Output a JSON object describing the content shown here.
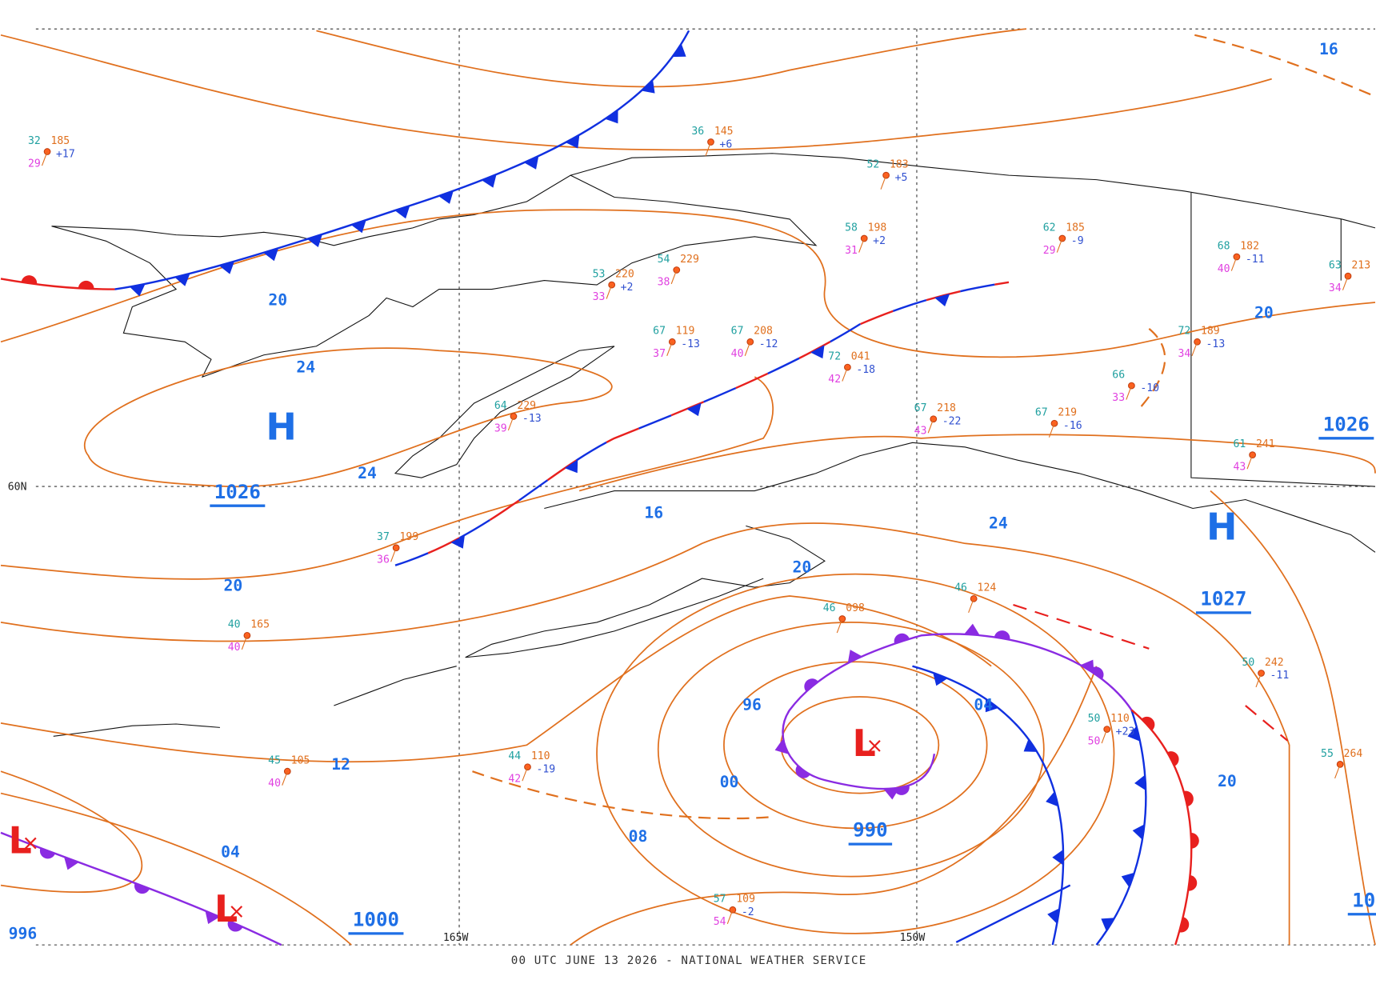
{
  "footer": "00 UTC JUNE 13 2026 - NATIONAL WEATHER SERVICE",
  "grid_labels": [
    "60N",
    "165W",
    "150W"
  ],
  "isobar_labels": [
    "20",
    "24",
    "24",
    "20",
    "20",
    "16",
    "24",
    "12",
    "04",
    "96",
    "04",
    "00",
    "08",
    "20",
    "20",
    "16",
    "996"
  ],
  "pressure_labels": [
    "1026",
    "1000",
    "990",
    "1027",
    "1026",
    "10"
  ],
  "centers": [
    "H",
    "H",
    "L",
    "L",
    "L"
  ],
  "stations": [
    {
      "temp": "32",
      "pressure": "185",
      "dewpoint": "29",
      "tendency": "+17"
    },
    {
      "temp": "36",
      "pressure": "145",
      "tendency": "+6"
    },
    {
      "temp": "52",
      "pressure": "183",
      "tendency": "+5"
    },
    {
      "temp": "58",
      "pressure": "198",
      "dewpoint": "31",
      "tendency": "+2"
    },
    {
      "temp": "62",
      "pressure": "185",
      "dewpoint": "29",
      "tendency": "-9"
    },
    {
      "temp": "68",
      "pressure": "182",
      "dewpoint": "40",
      "tendency": "-11"
    },
    {
      "temp": "53",
      "pressure": "220",
      "dewpoint": "33",
      "tendency": "+2"
    },
    {
      "temp": "54",
      "pressure": "229",
      "dewpoint": "38"
    },
    {
      "temp": "67",
      "pressure": "119",
      "dewpoint": "37",
      "tendency": "-13"
    },
    {
      "temp": "67",
      "pressure": "208",
      "dewpoint": "40",
      "tendency": "-12"
    },
    {
      "temp": "72",
      "pressure": "041",
      "dewpoint": "42",
      "tendency": "-18"
    },
    {
      "temp": "67",
      "pressure": "219",
      "tendency": "-16"
    },
    {
      "temp": "67",
      "pressure": "218",
      "dewpoint": "43",
      "tendency": "-22"
    },
    {
      "temp": "64",
      "pressure": "229",
      "dewpoint": "39",
      "tendency": "-13"
    },
    {
      "temp": "37",
      "pressure": "199",
      "dewpoint": "36"
    },
    {
      "temp": "40",
      "pressure": "165",
      "dewpoint": "40"
    },
    {
      "temp": "46",
      "pressure": "124"
    },
    {
      "temp": "46",
      "pressure": "098"
    },
    {
      "temp": "50",
      "pressure": "110",
      "dewpoint": "50",
      "tendency": "+23"
    },
    {
      "temp": "50",
      "pressure": "242",
      "tendency": "-11"
    },
    {
      "temp": "55",
      "pressure": "264"
    },
    {
      "temp": "44",
      "pressure": "110",
      "dewpoint": "42",
      "tendency": "-19"
    },
    {
      "temp": "45",
      "pressure": "105",
      "dewpoint": "40"
    },
    {
      "temp": "57",
      "pressure": "109",
      "dewpoint": "54",
      "tendency": "-2"
    },
    {
      "temp": "61",
      "pressure": "241",
      "dewpoint": "43"
    },
    {
      "temp": "66",
      "dewpoint": "33",
      "tendency": "-10"
    },
    {
      "temp": "72",
      "pressure": "189",
      "dewpoint": "34",
      "tendency": "-13"
    },
    {
      "temp": "63",
      "pressure": "213",
      "dewpoint": "34"
    }
  ]
}
